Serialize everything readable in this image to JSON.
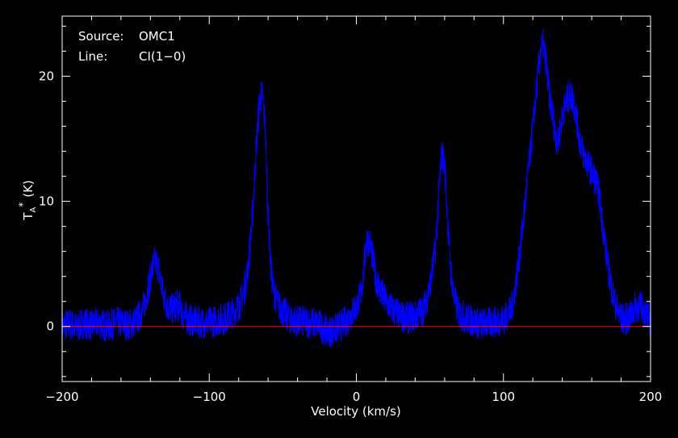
{
  "chart_data": {
    "type": "line",
    "title": "",
    "xlabel": "Velocity (km/s)",
    "ylabel": "T",
    "ylabel_sub": "A",
    "ylabel_sup": "*",
    "ylabel_unit": "(K)",
    "xlim": [
      -200,
      200
    ],
    "ylim": [
      -4.4,
      24.8
    ],
    "x_ticks": [
      -200,
      -100,
      0,
      100,
      200
    ],
    "x_tick_labels": [
      "−200",
      "−100",
      "0",
      "100",
      "200"
    ],
    "y_ticks": [
      0,
      10,
      20
    ],
    "y_tick_labels": [
      "0",
      "10",
      "20"
    ],
    "annotations": [
      {
        "label": "Source:",
        "value": "OMC1"
      },
      {
        "label": "Line:",
        "value": "CI(1−0)"
      }
    ],
    "baseline": 0,
    "grid": false,
    "colors": {
      "spectrum": "#0000ff",
      "baseline": "#ff0000",
      "axes": "#ffffff",
      "background": "#000000"
    },
    "series": [
      {
        "values_note_free": true,
        "x": [
          -200,
          -195,
          -190,
          -185,
          -180,
          -175,
          -170,
          -165,
          -160,
          -155,
          -150,
          -145,
          -142,
          -139,
          -137,
          -135,
          -133,
          -131,
          -128,
          -125,
          -122,
          -120,
          -118,
          -115,
          -110,
          -105,
          -100,
          -95,
          -90,
          -85,
          -80,
          -77,
          -74,
          -71,
          -68,
          -66,
          -64,
          -62,
          -60,
          -58,
          -56,
          -53,
          -50,
          -45,
          -40,
          -35,
          -30,
          -25,
          -20,
          -15,
          -10,
          -5,
          0,
          3,
          5,
          7,
          9,
          11,
          13,
          16,
          20,
          25,
          30,
          35,
          40,
          45,
          48,
          51,
          54,
          56,
          58,
          60,
          62,
          64,
          66,
          68,
          70,
          75,
          80,
          85,
          90,
          95,
          100,
          105,
          108,
          111,
          114,
          117,
          120,
          123,
          125,
          127,
          129,
          131,
          133,
          135,
          137,
          139,
          141,
          143,
          145,
          147,
          149,
          151,
          153,
          155,
          157,
          159,
          161,
          163,
          165,
          168,
          171,
          174,
          177,
          180,
          185,
          190,
          195,
          200
        ],
        "values": [
          0.0,
          0.2,
          -0.1,
          0.3,
          0.1,
          0.3,
          0.0,
          0.2,
          0.3,
          0.1,
          0.4,
          1.3,
          2.8,
          4.4,
          5.2,
          4.9,
          3.6,
          2.4,
          1.6,
          1.4,
          1.7,
          1.6,
          1.0,
          0.6,
          0.4,
          0.3,
          0.3,
          0.5,
          0.6,
          1.0,
          1.6,
          2.5,
          4.3,
          8.2,
          14.5,
          17.8,
          18.6,
          16.0,
          9.0,
          4.4,
          2.8,
          1.7,
          1.2,
          0.6,
          0.4,
          0.4,
          0.3,
          0.1,
          -0.4,
          -0.3,
          0.1,
          0.7,
          1.6,
          2.5,
          4.4,
          6.9,
          6.8,
          5.5,
          4.0,
          2.9,
          2.0,
          1.3,
          0.8,
          0.7,
          0.8,
          1.3,
          2.2,
          3.9,
          6.5,
          10.5,
          13.8,
          13.0,
          8.5,
          4.7,
          2.6,
          1.6,
          1.0,
          0.6,
          0.4,
          0.2,
          0.3,
          0.4,
          0.6,
          1.2,
          3.0,
          5.8,
          9.0,
          12.5,
          16.0,
          19.5,
          21.8,
          22.6,
          21.0,
          18.6,
          17.2,
          15.6,
          14.6,
          16.2,
          17.4,
          18.0,
          18.5,
          18.3,
          17.2,
          15.5,
          14.3,
          13.6,
          13.1,
          12.6,
          12.1,
          11.5,
          10.6,
          7.6,
          4.8,
          2.7,
          1.4,
          0.6,
          0.6,
          1.6,
          1.5,
          0.3
        ]
      }
    ]
  }
}
